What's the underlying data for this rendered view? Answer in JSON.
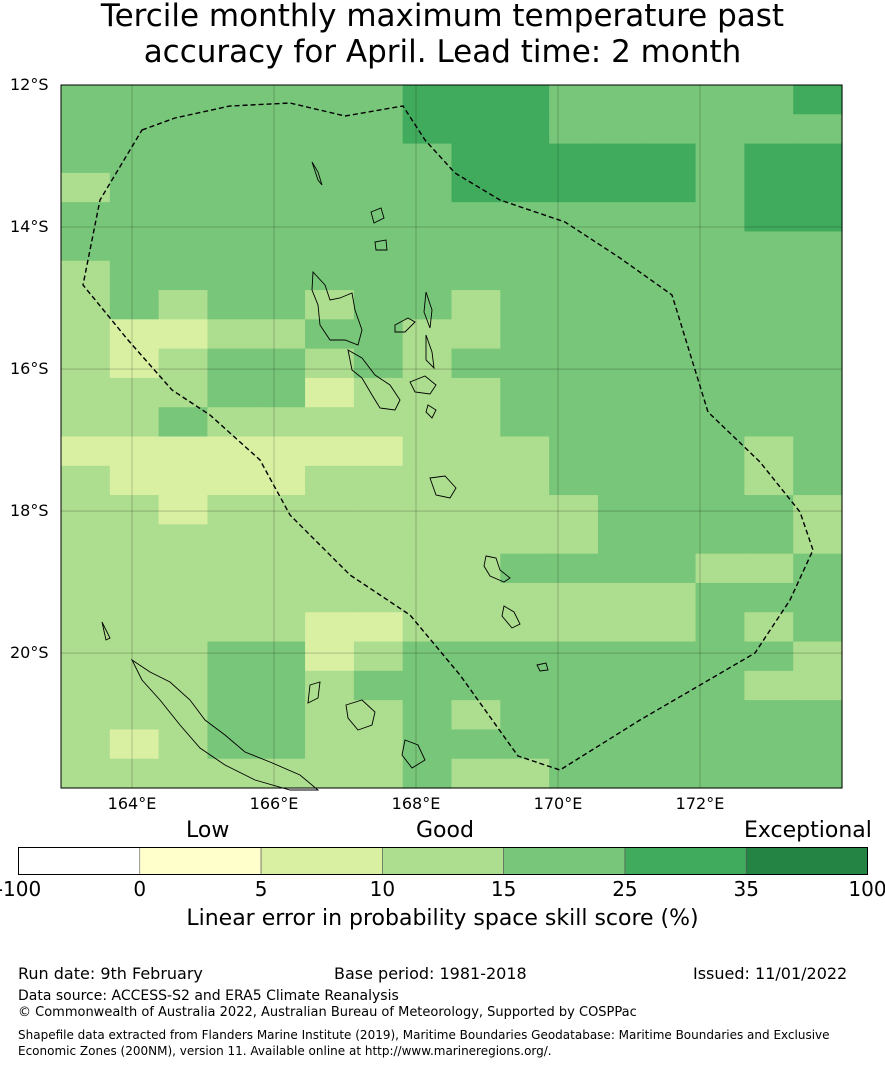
{
  "title_line1": "Tercile monthly maximum temperature past",
  "title_line2": "accuracy for April. Lead time: 2 month",
  "map": {
    "lon_range": [
      163.0,
      174.0
    ],
    "lat_range": [
      -21.9,
      -12.0
    ],
    "lat_ticks": [
      {
        "value": -12,
        "label": "12°S"
      },
      {
        "value": -14,
        "label": "14°S"
      },
      {
        "value": -16,
        "label": "16°S"
      },
      {
        "value": -18,
        "label": "18°S"
      },
      {
        "value": -20,
        "label": "20°S"
      }
    ],
    "lon_ticks": [
      {
        "value": 164,
        "label": "164°E"
      },
      {
        "value": 166,
        "label": "166°E"
      },
      {
        "value": 168,
        "label": "168°E"
      },
      {
        "value": 170,
        "label": "170°E"
      },
      {
        "value": 172,
        "label": "172°E"
      }
    ],
    "grid_cols": [
      "#78c679",
      "#78c679",
      "#78c679",
      "#78c679",
      "#78c679",
      "#78c679",
      "#78c679",
      "#78c679",
      "#78c679",
      "#78c679",
      "#78c679",
      "#78c679",
      "#78c679"
    ],
    "colors": [
      "#ffffff",
      "#ffffcc",
      "#d9f0a3",
      "#addd8e",
      "#78c679",
      "#41ab5d",
      "#238443"
    ],
    "skill_levels_rows": [
      "4444444555444445",
      "4444444555444444",
      "4444444455555455",
      "3444444455555455",
      "4444444444444455",
      "4444444444444444",
      "3444444444444444",
      "3434434434444444",
      "3223344334444444",
      "3234434344444444",
      "3334423334444444",
      "3343333334444444",
      "2222222333444434",
      "3222233333444434",
      "3323333333344443",
      "3333333333344443",
      "3333333334444334",
      "3333333333333444",
      "3333322333333434",
      "3334423444444443",
      "3334434444444433",
      "3334433434444444",
      "3234433444444444",
      "3333333433444444"
    ]
  },
  "colorbar": {
    "categories": [
      {
        "label": "Low"
      },
      {
        "label": "Good"
      },
      {
        "label": "Exceptional"
      }
    ],
    "ticks": [
      "-100",
      "0",
      "5",
      "10",
      "15",
      "25",
      "35",
      "100"
    ],
    "colors": [
      "#ffffff",
      "#ffffcc",
      "#d9f0a3",
      "#addd8e",
      "#78c679",
      "#41ab5d",
      "#238443"
    ],
    "title": "Linear error in probability space skill score (%)"
  },
  "footer": {
    "run_date": "Run date: 9th February",
    "base_period": "Base period: 1981-2018",
    "issued": "Issued: 11/01/2022",
    "data_source": "Data source: ACCESS-S2 and ERA5 Climate Reanalysis",
    "copyright": "© Commonwealth of Australia 2022, Australian Bureau of Meteorology, Supported by COSPPac",
    "shapefile": "Shapefile data extracted from Flanders Marine Institute (2019), Maritime Boundaries Geodatabase: Maritime Boundaries and Exclusive Economic Zones (200NM), version 11. Available online at http://www.marineregions.org/."
  }
}
